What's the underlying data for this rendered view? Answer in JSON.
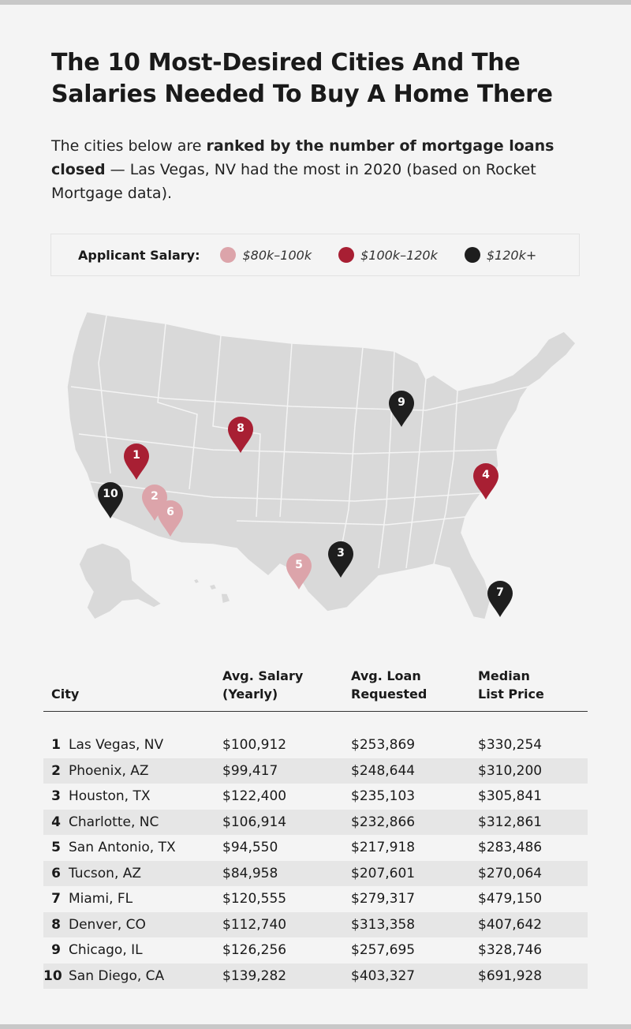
{
  "title": "The 10 Most-Desired Cities And The Salaries Needed To Buy A Home There",
  "intro": {
    "lead": "The cities below are ",
    "bold": "ranked by the number of mortgage loans closed",
    "rest": " — Las Vegas, NV had the most in 2020 (based on Rocket Mortgage data)."
  },
  "legend": {
    "title": "Applicant Salary:",
    "items": [
      {
        "label": "$80k–100k",
        "color": "#dca4aa"
      },
      {
        "label": "$100k–120k",
        "color": "#a81f33"
      },
      {
        "label": "$120k+",
        "color": "#1e1e1e"
      }
    ]
  },
  "map_pins": [
    {
      "rank": "1",
      "tier": "$100k–120k"
    },
    {
      "rank": "2",
      "tier": "$80k–100k"
    },
    {
      "rank": "3",
      "tier": "$120k+"
    },
    {
      "rank": "4",
      "tier": "$100k–120k"
    },
    {
      "rank": "5",
      "tier": "$80k–100k"
    },
    {
      "rank": "6",
      "tier": "$80k–100k"
    },
    {
      "rank": "7",
      "tier": "$120k+"
    },
    {
      "rank": "8",
      "tier": "$100k–120k"
    },
    {
      "rank": "9",
      "tier": "$120k+"
    },
    {
      "rank": "10",
      "tier": "$120k+"
    }
  ],
  "table": {
    "headers": {
      "city": "City",
      "salary_1": "Avg. Salary",
      "salary_2": "(Yearly)",
      "loan_1": "Avg. Loan",
      "loan_2": "Requested",
      "price_1": "Median",
      "price_2": "List Price"
    },
    "rows": [
      {
        "rank": "1",
        "city": "Las Vegas, NV",
        "salary": "$100,912",
        "loan": "$253,869",
        "price": "$330,254"
      },
      {
        "rank": "2",
        "city": "Phoenix, AZ",
        "salary": "$99,417",
        "loan": "$248,644",
        "price": "$310,200"
      },
      {
        "rank": "3",
        "city": "Houston, TX",
        "salary": "$122,400",
        "loan": "$235,103",
        "price": "$305,841"
      },
      {
        "rank": "4",
        "city": "Charlotte, NC",
        "salary": "$106,914",
        "loan": "$232,866",
        "price": "$312,861"
      },
      {
        "rank": "5",
        "city": "San Antonio, TX",
        "salary": "$94,550",
        "loan": "$217,918",
        "price": "$283,486"
      },
      {
        "rank": "6",
        "city": "Tucson, AZ",
        "salary": "$84,958",
        "loan": "$207,601",
        "price": "$270,064"
      },
      {
        "rank": "7",
        "city": "Miami, FL",
        "salary": "$120,555",
        "loan": "$279,317",
        "price": "$479,150"
      },
      {
        "rank": "8",
        "city": "Denver, CO",
        "salary": "$112,740",
        "loan": "$313,358",
        "price": "$407,642"
      },
      {
        "rank": "9",
        "city": "Chicago, IL",
        "salary": "$126,256",
        "loan": "$257,695",
        "price": "$328,746"
      },
      {
        "rank": "10",
        "city": "San Diego, CA",
        "salary": "$139,282",
        "loan": "$403,327",
        "price": "$691,928"
      }
    ]
  }
}
